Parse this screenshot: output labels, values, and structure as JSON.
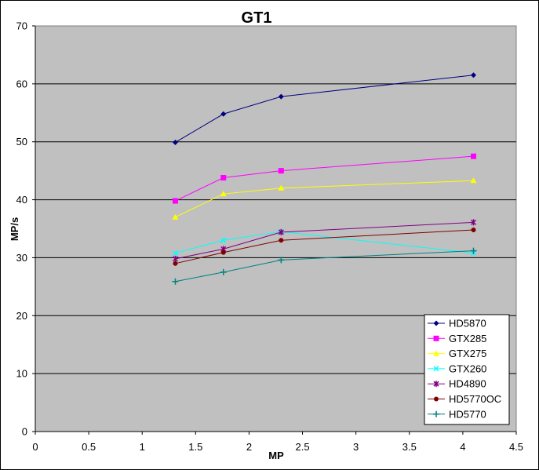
{
  "chart_data": {
    "type": "line",
    "title": "GT1",
    "xlabel": "MP",
    "ylabel": "MP/s",
    "xlim": [
      0,
      4.5
    ],
    "ylim": [
      0,
      70
    ],
    "xticks": [
      "0",
      "0.5",
      "1",
      "1.5",
      "2",
      "2.5",
      "3",
      "3.5",
      "4",
      "4.5"
    ],
    "yticks": [
      "0",
      "10",
      "20",
      "30",
      "40",
      "50",
      "60",
      "70"
    ],
    "grid": "horizontal",
    "legend_position": "bottom-right",
    "plot_background": "#c0c0c0",
    "x": [
      1.31,
      1.76,
      2.3,
      4.1
    ],
    "series": [
      {
        "name": "HD5870",
        "color": "#000080",
        "marker": "diamond",
        "values": [
          49.9,
          54.8,
          57.8,
          61.5
        ]
      },
      {
        "name": "GTX285",
        "color": "#ff00ff",
        "marker": "square",
        "values": [
          39.8,
          43.8,
          45.0,
          47.5
        ]
      },
      {
        "name": "GTX275",
        "color": "#ffff00",
        "marker": "triangle",
        "values": [
          37.0,
          41.0,
          42.0,
          43.3
        ]
      },
      {
        "name": "GTX260",
        "color": "#00ffff",
        "marker": "x",
        "values": [
          30.8,
          33.0,
          34.5,
          30.8
        ]
      },
      {
        "name": "HD4890",
        "color": "#800080",
        "marker": "star",
        "values": [
          29.8,
          31.5,
          34.4,
          36.1
        ]
      },
      {
        "name": "HD5770OC",
        "color": "#800000",
        "marker": "circle",
        "values": [
          29.0,
          30.9,
          33.0,
          34.8
        ]
      },
      {
        "name": "HD5770",
        "color": "#008080",
        "marker": "plus",
        "values": [
          25.9,
          27.5,
          29.6,
          31.2
        ]
      }
    ]
  }
}
